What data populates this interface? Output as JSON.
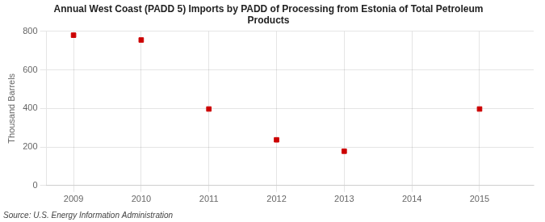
{
  "chart_data": {
    "type": "scatter",
    "title": "Annual West Coast (PADD 5) Imports by PADD of Processing from Estonia of Total Petroleum\nProducts",
    "ylabel": "Thousand Barrels",
    "source": "Source: U.S. Energy Information Administration",
    "x": [
      2009,
      2010,
      2011,
      2012,
      2013,
      2015
    ],
    "values": [
      780,
      755,
      397,
      237,
      178,
      397
    ],
    "color": "#cc0000",
    "marker": "square",
    "xlim": [
      2008.6,
      2015.8
    ],
    "xticks": [
      2009,
      2010,
      2011,
      2012,
      2013,
      2014,
      2015
    ],
    "ylim": [
      0,
      800
    ],
    "yticks": [
      0,
      200,
      400,
      600,
      800
    ],
    "grid": true
  }
}
